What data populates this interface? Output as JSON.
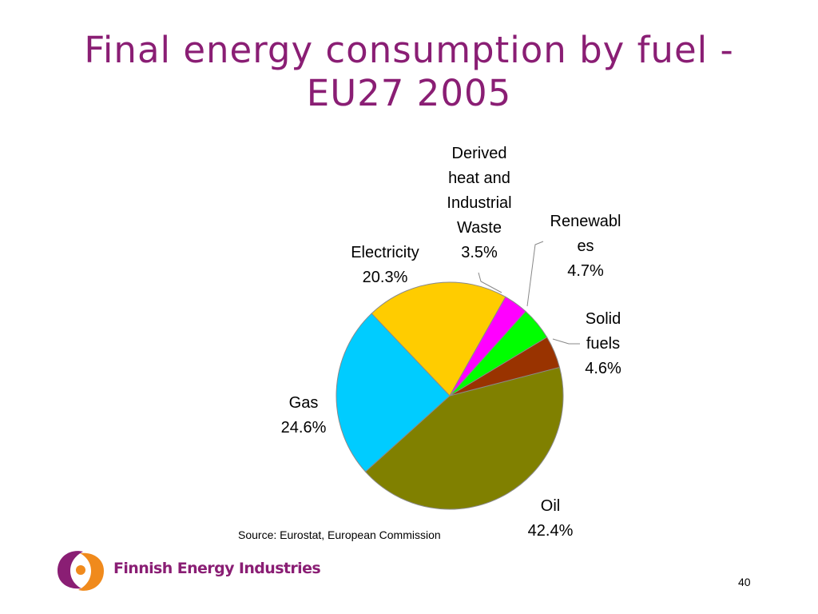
{
  "slide": {
    "title_line1": "Final energy consumption by fuel -",
    "title_line2": "EU27 2005",
    "source": "Source: Eurostat, European Commission",
    "page_number": "40",
    "title_color": "#8a1e74"
  },
  "logo": {
    "text": "Finnish Energy Industries",
    "text_color": "#8a1e74",
    "mark_colors": [
      "#8a1e74",
      "#f08a1c"
    ]
  },
  "chart_data": {
    "type": "pie",
    "title": "",
    "slices": [
      {
        "label_lines": [
          "Oil",
          "42.4%"
        ],
        "name": "Oil",
        "value": 42.4,
        "color": "#808000"
      },
      {
        "label_lines": [
          "Gas",
          "24.6%"
        ],
        "name": "Gas",
        "value": 24.6,
        "color": "#00ccff"
      },
      {
        "label_lines": [
          "Electricity",
          "20.3%"
        ],
        "name": "Electricity",
        "value": 20.3,
        "color": "#ffcc00"
      },
      {
        "label_lines": [
          "Derived",
          "heat and",
          "Industrial",
          "Waste",
          "3.5%"
        ],
        "name": "Derived heat and Industrial Waste",
        "value": 3.5,
        "color": "#ff00ff"
      },
      {
        "label_lines": [
          "Renewabl",
          "es",
          "4.7%"
        ],
        "name": "Renewables",
        "value": 4.7,
        "color": "#00ff00"
      },
      {
        "label_lines": [
          "Solid",
          "fuels",
          "4.6%"
        ],
        "name": "Solid fuels",
        "value": 4.6,
        "color": "#993300"
      }
    ],
    "legend": "none",
    "labels": "outside with leader lines"
  }
}
